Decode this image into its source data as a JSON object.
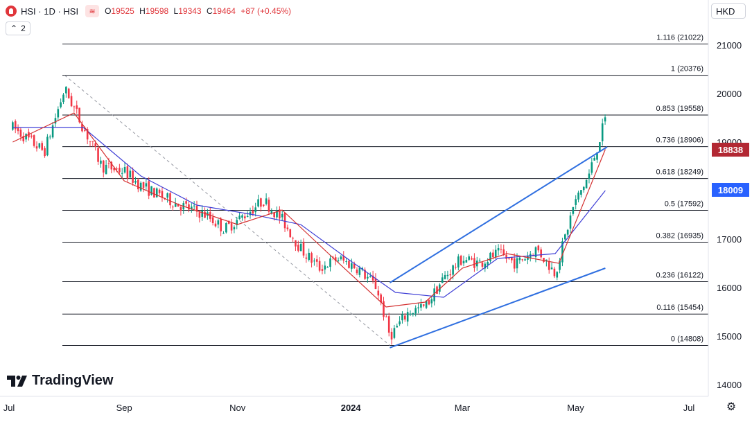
{
  "header": {
    "symbol": "HSI · 1D · HSI",
    "wave_icon": "≋",
    "open_label": "O",
    "open": "19525",
    "high_label": "H",
    "high": "19598",
    "low_label": "L",
    "low": "19343",
    "close_label": "C",
    "close": "19464",
    "change": "+87 (+0.45%)"
  },
  "collapse_count": "2",
  "currency": "HKD",
  "brand": "TradingView",
  "price_tags": [
    {
      "value": "18838",
      "color": "#b22833"
    },
    {
      "value": "18009",
      "color": "#2962ff"
    }
  ],
  "colors": {
    "up": "#089981",
    "down": "#f23645",
    "ma_fast": "#d32f2f",
    "ma_slow": "#3f3fd6",
    "trend": "#2f6fe0",
    "grid": "#131722"
  },
  "chart_data": {
    "type": "candlestick",
    "title": "HSI · 1D · HSI",
    "y_axis": {
      "ticks": [
        14000,
        15000,
        16000,
        17000,
        18000,
        19000,
        20000,
        21000
      ],
      "range": [
        13800,
        21600
      ]
    },
    "x_axis": {
      "ticks": [
        "Jul",
        "Sep",
        "Nov",
        "2024",
        "Mar",
        "May",
        "Jul"
      ]
    },
    "fibonacci": [
      {
        "ratio": "1.116",
        "value": 21022
      },
      {
        "ratio": "1",
        "value": 20376
      },
      {
        "ratio": "0.853",
        "value": 19558
      },
      {
        "ratio": "0.736",
        "value": 18906
      },
      {
        "ratio": "0.618",
        "value": 18249
      },
      {
        "ratio": "0.5",
        "value": 17592
      },
      {
        "ratio": "0.382",
        "value": 16935
      },
      {
        "ratio": "0.236",
        "value": 16122
      },
      {
        "ratio": "0.116",
        "value": 15454
      },
      {
        "ratio": "0",
        "value": 14808
      }
    ],
    "price_path": [
      [
        "2023-07-03",
        19300
      ],
      [
        "2023-07-20",
        18800
      ],
      [
        "2023-07-31",
        20100
      ],
      [
        "2023-08-10",
        19300
      ],
      [
        "2023-08-20",
        18500
      ],
      [
        "2023-09-01",
        18400
      ],
      [
        "2023-09-10",
        18100
      ],
      [
        "2023-09-20",
        17900
      ],
      [
        "2023-10-01",
        17700
      ],
      [
        "2023-10-15",
        17500
      ],
      [
        "2023-10-25",
        17200
      ],
      [
        "2023-11-05",
        17500
      ],
      [
        "2023-11-15",
        17800
      ],
      [
        "2023-11-25",
        17400
      ],
      [
        "2023-12-05",
        16800
      ],
      [
        "2023-12-15",
        16400
      ],
      [
        "2023-12-25",
        16600
      ],
      [
        "2024-01-05",
        16400
      ],
      [
        "2024-01-15",
        16000
      ],
      [
        "2024-01-22",
        15000
      ],
      [
        "2024-02-01",
        15500
      ],
      [
        "2024-02-10",
        15600
      ],
      [
        "2024-02-20",
        16200
      ],
      [
        "2024-03-01",
        16600
      ],
      [
        "2024-03-10",
        16500
      ],
      [
        "2024-03-20",
        16700
      ],
      [
        "2024-03-30",
        16500
      ],
      [
        "2024-04-10",
        16800
      ],
      [
        "2024-04-20",
        16300
      ],
      [
        "2024-04-30",
        17700
      ],
      [
        "2024-05-08",
        18300
      ],
      [
        "2024-05-17",
        19464
      ]
    ],
    "ma_fast": [
      [
        "2023-07-03",
        19000
      ],
      [
        "2023-08-05",
        19600
      ],
      [
        "2023-09-01",
        18200
      ],
      [
        "2023-10-01",
        17700
      ],
      [
        "2023-11-01",
        17300
      ],
      [
        "2023-11-25",
        17600
      ],
      [
        "2023-12-20",
        16700
      ],
      [
        "2024-01-20",
        15600
      ],
      [
        "2024-02-10",
        15700
      ],
      [
        "2024-03-01",
        16400
      ],
      [
        "2024-03-25",
        16700
      ],
      [
        "2024-04-22",
        16500
      ],
      [
        "2024-05-17",
        18850
      ]
    ],
    "ma_slow": [
      [
        "2023-07-03",
        19300
      ],
      [
        "2023-08-10",
        19300
      ],
      [
        "2023-09-10",
        18300
      ],
      [
        "2023-10-10",
        17700
      ],
      [
        "2023-11-10",
        17500
      ],
      [
        "2023-12-05",
        17300
      ],
      [
        "2023-12-30",
        16600
      ],
      [
        "2024-01-25",
        15900
      ],
      [
        "2024-02-20",
        15800
      ],
      [
        "2024-03-20",
        16600
      ],
      [
        "2024-04-20",
        16700
      ],
      [
        "2024-05-17",
        18000
      ]
    ],
    "trend_lines": [
      {
        "from": [
          "2024-01-22",
          16100
        ],
        "to": [
          "2024-05-18",
          18900
        ]
      },
      {
        "from": [
          "2024-01-22",
          14760
        ],
        "to": [
          "2024-05-17",
          16400
        ]
      }
    ],
    "fib_anchor": {
      "from": [
        "2023-07-31",
        20376
      ],
      "to": [
        "2024-01-22",
        14808
      ]
    },
    "last_price": 19464
  }
}
